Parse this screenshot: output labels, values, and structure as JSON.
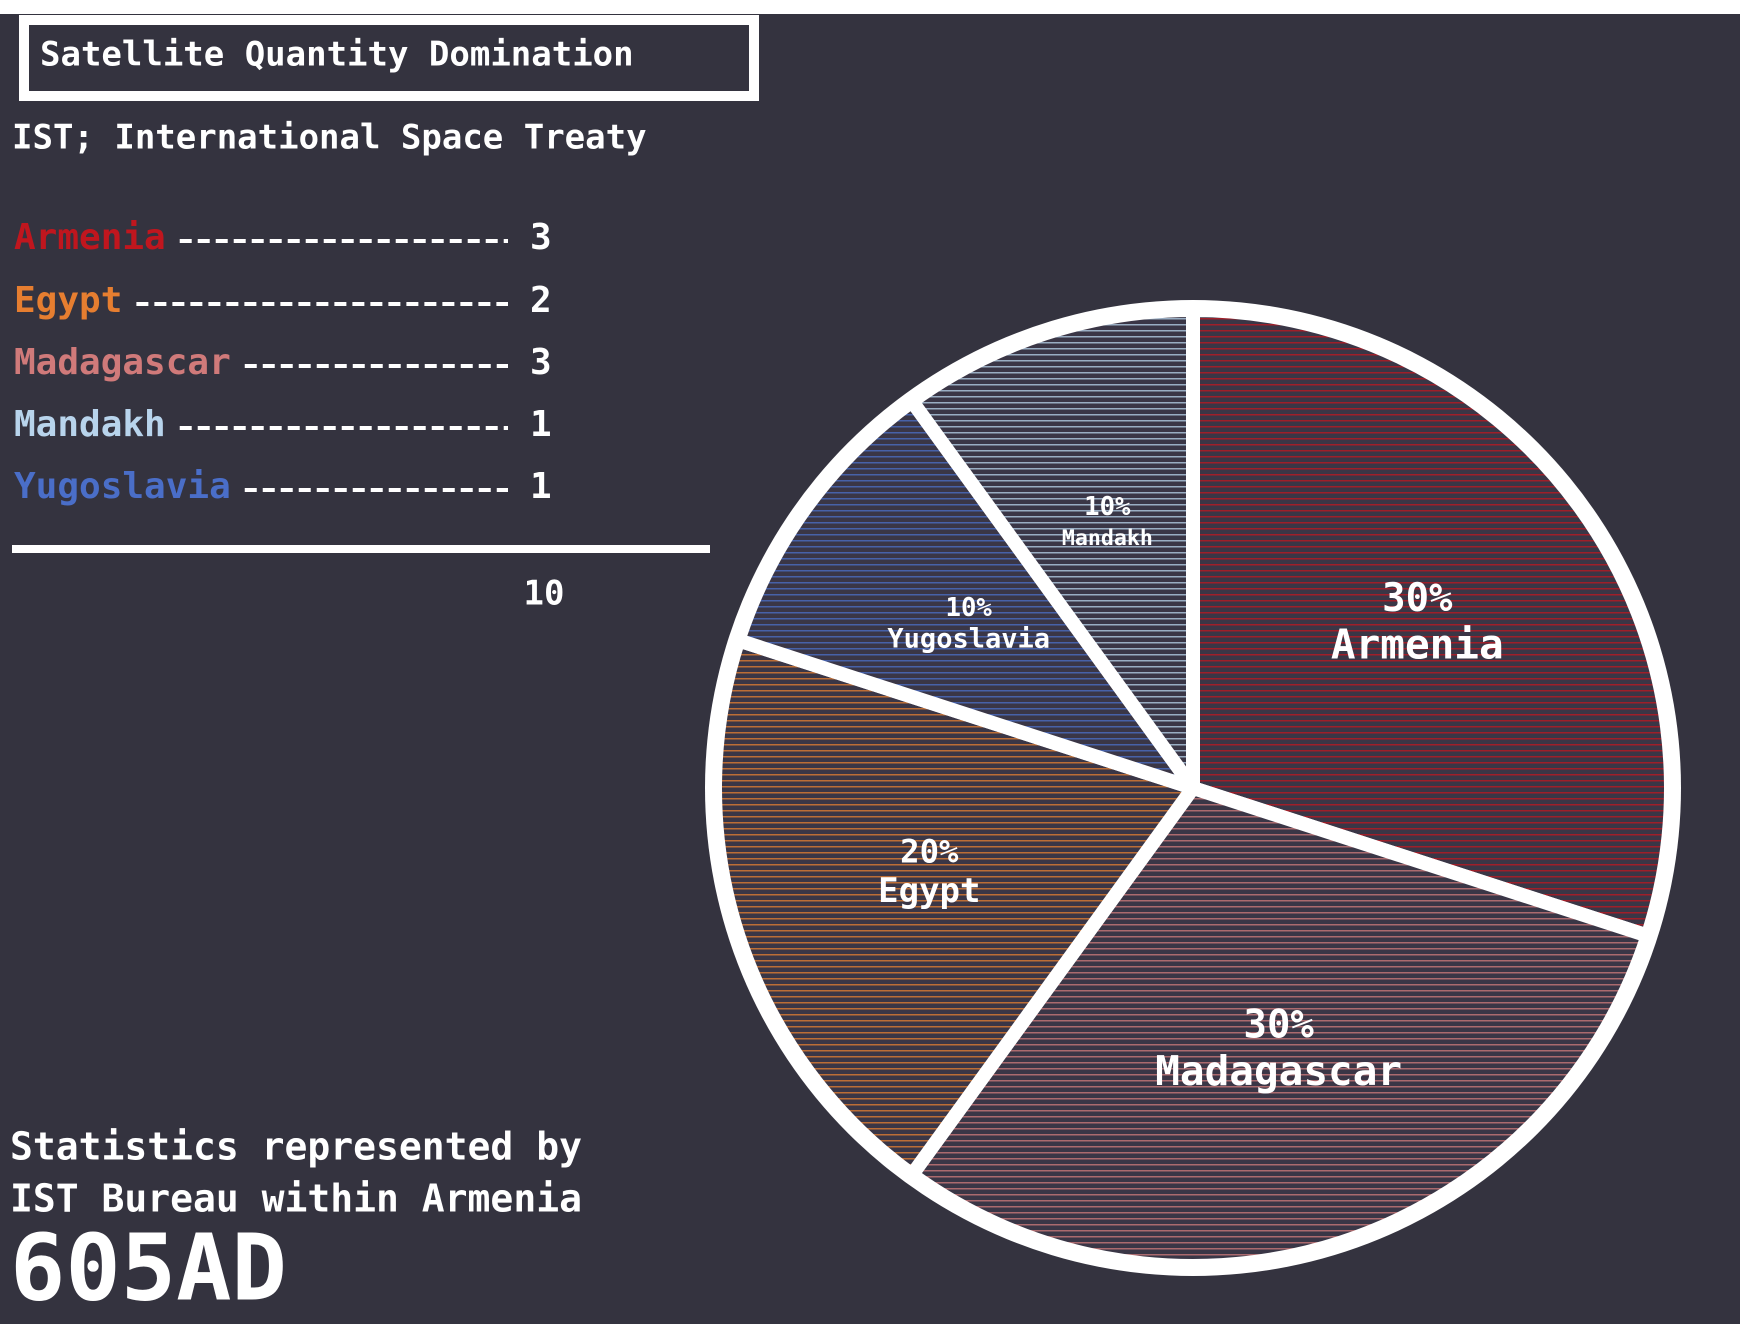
{
  "chart_data": {
    "type": "pie",
    "title": "Satellite Quantity Domination",
    "subtitle": "IST; International Space Treaty",
    "categories": [
      "Armenia",
      "Madagascar",
      "Egypt",
      "Yugoslavia",
      "Mandakh"
    ],
    "values": [
      30,
      30,
      20,
      10,
      10
    ],
    "value_labels": [
      "30%",
      "30%",
      "20%",
      "10%",
      "10%"
    ],
    "colors": [
      "#c0161e",
      "#d07a7a",
      "#e67e30",
      "#4a6ec8",
      "#b8d4ec"
    ]
  },
  "legend": [
    {
      "name": "Armenia",
      "count": 3,
      "color": "#c0161e"
    },
    {
      "name": "Egypt",
      "count": 2,
      "color": "#e67e30"
    },
    {
      "name": "Madagascar",
      "count": 3,
      "color": "#d07a7a"
    },
    {
      "name": "Mandakh",
      "count": 1,
      "color": "#b8d4ec"
    },
    {
      "name": "Yugoslavia",
      "count": 1,
      "color": "#4a6ec8"
    }
  ],
  "total": 10,
  "footer": {
    "line1": "Statistics represented by",
    "line2": "IST Bureau within Armenia",
    "date": "605AD"
  }
}
